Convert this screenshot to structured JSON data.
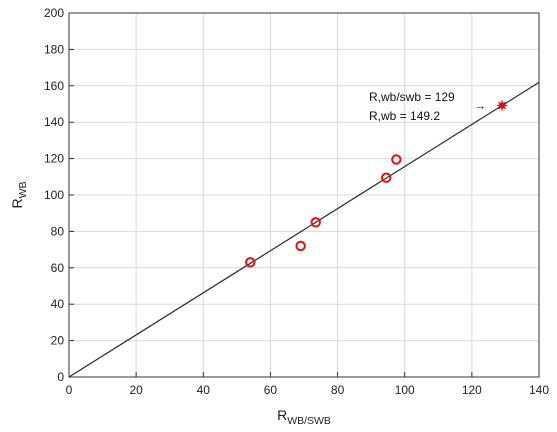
{
  "colors": {
    "axis": "#333333",
    "grid": "#d9d9d9",
    "fit_line": "#2b2b2b",
    "marker": "#e01010"
  },
  "chart_data": {
    "type": "scatter",
    "title": "",
    "xlabel": {
      "main": "R",
      "sub": "WB/SWB"
    },
    "ylabel": {
      "main": "R",
      "sub": "WB"
    },
    "xlim": [
      0,
      140
    ],
    "ylim": [
      0,
      200
    ],
    "xticks": [
      "0",
      "20",
      "40",
      "60",
      "80",
      "100",
      "120",
      "140"
    ],
    "yticks": [
      "0",
      "20",
      "40",
      "60",
      "80",
      "100",
      "120",
      "140",
      "160",
      "180",
      "200"
    ],
    "grid": true,
    "series": [
      {
        "marker": "open-circle",
        "points": [
          {
            "x": 54,
            "y": 63
          },
          {
            "x": 69,
            "y": 72
          },
          {
            "x": 73.5,
            "y": 85
          },
          {
            "x": 94.5,
            "y": 109.5
          },
          {
            "x": 97.5,
            "y": 119.5
          }
        ]
      },
      {
        "marker": "filled-star",
        "points": [
          {
            "x": 129,
            "y": 149.2
          }
        ]
      }
    ],
    "fit_line": {
      "x": [
        0,
        140
      ],
      "y": [
        0,
        161.9
      ]
    },
    "annotation": {
      "lines": [
        "R,wb/swb = 129",
        "R,wb = 149.2"
      ],
      "arrow": "→",
      "target": {
        "x": 129,
        "y": 149.2
      }
    }
  }
}
